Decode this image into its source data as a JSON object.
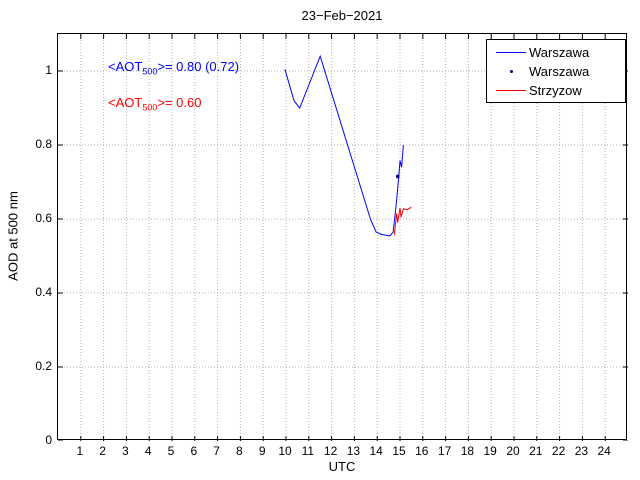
{
  "annotations": [
    {
      "prefix": "<AOT",
      "sub": "500",
      "suffix": ">= 0.80 (0.72)",
      "color": "#0000ff"
    },
    {
      "prefix": "<AOT",
      "sub": "500",
      "suffix": ">= 0.60",
      "color": "#ff0000"
    }
  ],
  "chart_data": {
    "type": "line",
    "title": "23−Feb−2021",
    "xlabel": "UTC",
    "ylabel": "AOD at 500 nm",
    "xlim": [
      0,
      25
    ],
    "ylim": [
      0,
      1.1
    ],
    "xticks": [
      1,
      2,
      3,
      4,
      5,
      6,
      7,
      8,
      9,
      10,
      11,
      12,
      13,
      14,
      15,
      16,
      17,
      18,
      19,
      20,
      21,
      22,
      23,
      24
    ],
    "yticks": [
      0,
      0.2,
      0.4,
      0.6,
      0.8,
      1
    ],
    "grid": true,
    "grid_color": "#b0b0b0",
    "axis_color": "#000000",
    "legend_position": "top-right",
    "series": [
      {
        "name": "Warszawa",
        "mode": "line",
        "color": "#0000ff",
        "x": [
          9.95,
          10.35,
          10.6,
          11.5,
          13.7,
          13.95,
          14.2,
          14.55,
          14.7,
          14.85,
          14.95,
          15.0,
          15.07,
          15.15
        ],
        "y": [
          1.005,
          0.92,
          0.9,
          1.04,
          0.6,
          0.565,
          0.558,
          0.554,
          0.565,
          0.65,
          0.72,
          0.758,
          0.74,
          0.8
        ]
      },
      {
        "name": "Warszawa",
        "mode": "scatter",
        "color": "#00008b",
        "x": [
          14.9
        ],
        "y": [
          0.715
        ]
      },
      {
        "name": "Strzyzow",
        "mode": "line",
        "color": "#ff0000",
        "x": [
          14.75,
          14.85,
          14.9,
          15.0,
          15.05,
          15.15,
          15.3,
          15.5
        ],
        "y": [
          0.556,
          0.615,
          0.59,
          0.63,
          0.605,
          0.628,
          0.625,
          0.632
        ]
      }
    ]
  }
}
